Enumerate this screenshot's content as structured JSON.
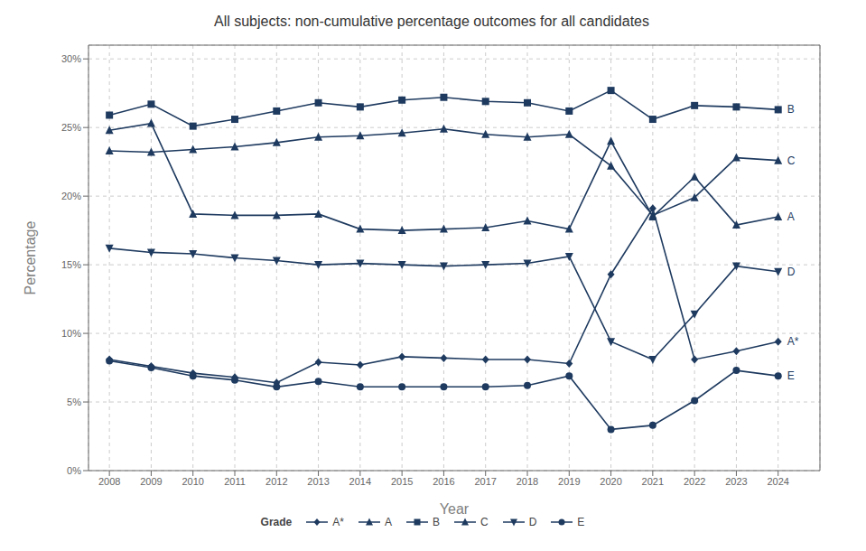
{
  "chart_data": {
    "type": "line",
    "title": "All subjects: non-cumulative percentage outcomes for all candidates",
    "x_label": "Year",
    "y_label": "Percentage",
    "legend_title": "Grade",
    "legend": "bottom",
    "grid": true,
    "x": [
      2008,
      2009,
      2010,
      2011,
      2012,
      2013,
      2014,
      2015,
      2016,
      2017,
      2018,
      2019,
      2020,
      2021,
      2022,
      2023,
      2024
    ],
    "xlim": [
      2007.5,
      2025.0
    ],
    "xticks": [
      2008,
      2009,
      2010,
      2011,
      2012,
      2013,
      2014,
      2015,
      2016,
      2017,
      2018,
      2019,
      2020,
      2021,
      2022,
      2023,
      2024
    ],
    "ylim": [
      0,
      31
    ],
    "yticks": [
      {
        "value": 0,
        "label": "0%"
      },
      {
        "value": 5,
        "label": "5%"
      },
      {
        "value": 10,
        "label": "10%"
      },
      {
        "value": 15,
        "label": "15%"
      },
      {
        "value": 20,
        "label": "20%"
      },
      {
        "value": 25,
        "label": "25%"
      },
      {
        "value": 30,
        "label": "30%"
      }
    ],
    "series": [
      {
        "name": "A*",
        "color": "#1e3a5f",
        "marker": "diamond",
        "values": [
          8.1,
          7.6,
          7.1,
          6.8,
          6.4,
          7.9,
          7.7,
          8.3,
          8.2,
          8.1,
          8.1,
          7.8,
          14.3,
          19.1,
          8.1,
          8.7,
          9.4
        ]
      },
      {
        "name": "A",
        "color": "#1e3a5f",
        "marker": "triangle",
        "values": [
          24.8,
          25.3,
          18.7,
          18.6,
          18.6,
          18.7,
          17.6,
          17.5,
          17.6,
          17.7,
          18.2,
          17.6,
          24.0,
          18.5,
          21.4,
          17.9,
          18.5
        ]
      },
      {
        "name": "B",
        "color": "#1e3a5f",
        "marker": "square",
        "values": [
          25.9,
          26.7,
          25.1,
          25.6,
          26.2,
          26.8,
          26.5,
          27.0,
          27.2,
          26.9,
          26.8,
          26.2,
          27.7,
          25.6,
          26.6,
          26.5,
          26.3
        ]
      },
      {
        "name": "C",
        "color": "#1e3a5f",
        "marker": "triangle",
        "values": [
          23.3,
          23.2,
          23.4,
          23.6,
          23.9,
          24.3,
          24.4,
          24.6,
          24.9,
          24.5,
          24.3,
          24.5,
          22.2,
          18.6,
          19.9,
          22.8,
          22.6
        ]
      },
      {
        "name": "D",
        "color": "#1e3a5f",
        "marker": "triangle-down",
        "values": [
          16.2,
          15.9,
          15.8,
          15.5,
          15.3,
          15.0,
          15.1,
          15.0,
          14.9,
          15.0,
          15.1,
          15.6,
          9.4,
          8.1,
          11.4,
          14.9,
          14.5
        ]
      },
      {
        "name": "E",
        "color": "#1e3a5f",
        "marker": "circle",
        "values": [
          8.0,
          7.5,
          6.9,
          6.6,
          6.1,
          6.5,
          6.1,
          6.1,
          6.1,
          6.1,
          6.2,
          6.9,
          3.0,
          3.3,
          5.1,
          7.3,
          6.9
        ]
      }
    ]
  }
}
